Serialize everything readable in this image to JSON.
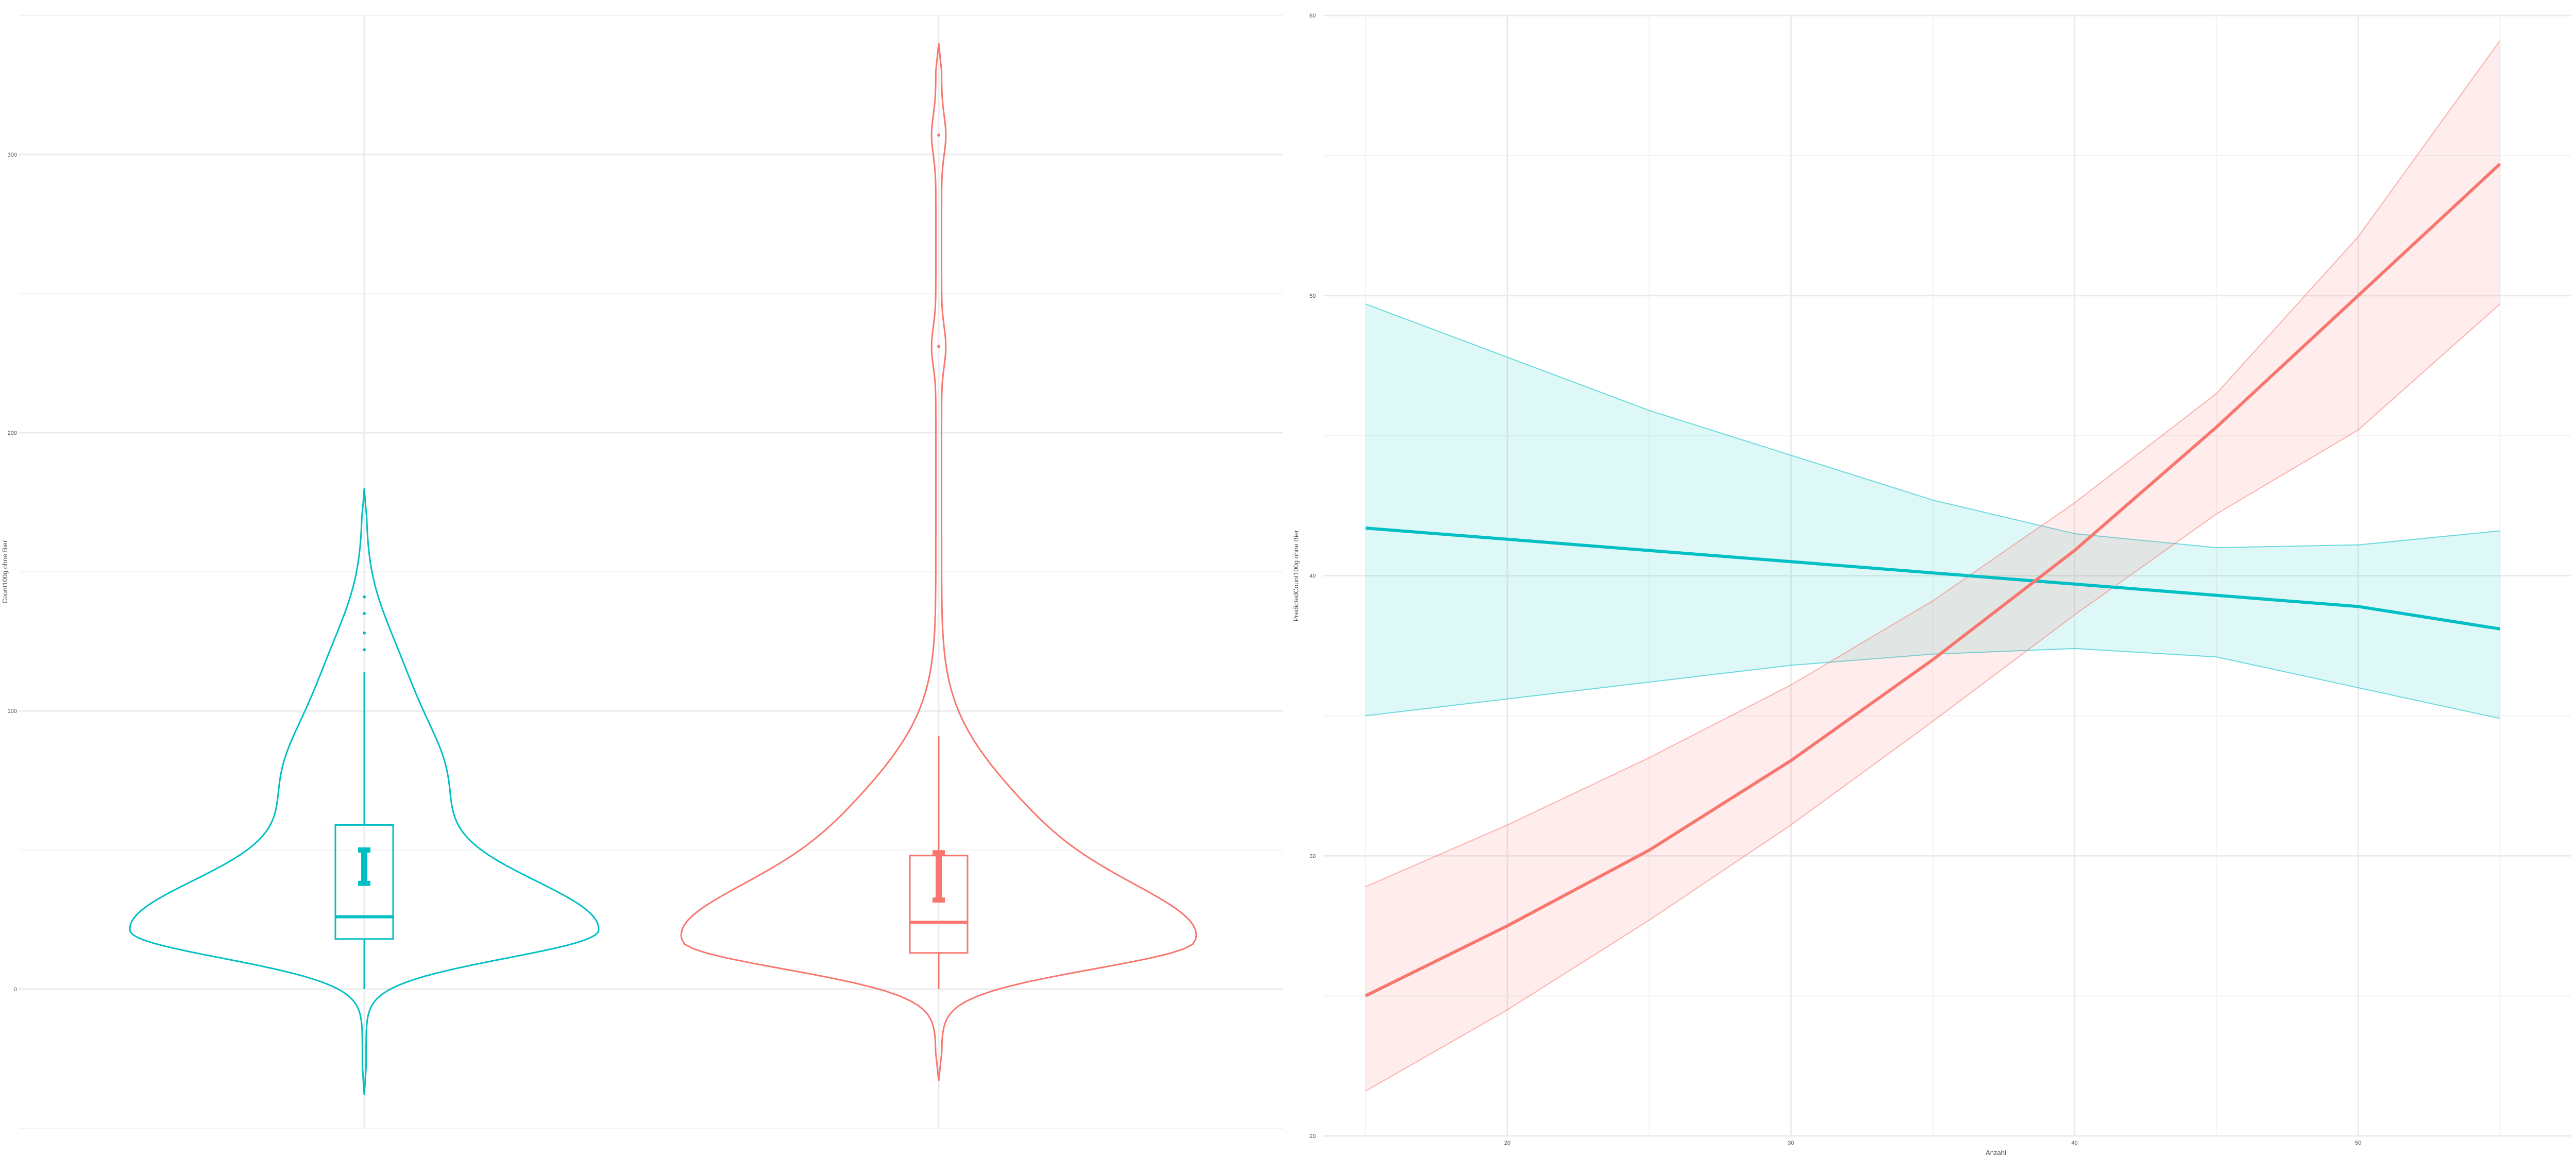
{
  "chart_data": [
    {
      "type": "violin",
      "ylabel": "Count100g ohne Bier",
      "yticks": [
        0,
        100,
        200,
        300
      ],
      "ylim": [
        -50,
        350
      ],
      "grid": true,
      "legend": "none",
      "groups": [
        {
          "color": "#00BFC4",
          "box": {
            "q1": 18,
            "median": 26,
            "q3": 59,
            "whisker_low": 0,
            "whisker_high": 114
          },
          "mean_ci": [
            38,
            50
          ],
          "outliers": [
            122,
            128,
            135,
            141
          ],
          "density_max_at": 21,
          "range": [
            -38,
            180
          ]
        },
        {
          "color": "#F8766D",
          "box": {
            "q1": 13,
            "median": 24,
            "q3": 48,
            "whisker_low": 0,
            "whisker_high": 91
          },
          "mean_ci": [
            32,
            49
          ],
          "outliers": [
            231,
            307
          ],
          "density_max_at": 17,
          "range": [
            -33,
            340
          ]
        }
      ]
    },
    {
      "type": "line",
      "xlabel": "Anzahl",
      "ylabel": "PredictedCount100g ohne Bier",
      "xticks": [
        20,
        30,
        40,
        50
      ],
      "yticks": [
        20,
        30,
        40,
        50,
        60
      ],
      "xlim": [
        13.5,
        57.5
      ],
      "ylim": [
        20,
        60
      ],
      "grid": true,
      "legend": "none",
      "series": [
        {
          "color": "#00BFC4",
          "x": [
            15,
            20,
            25,
            30,
            35,
            40,
            45,
            50,
            55
          ],
          "y": [
            41.7,
            41.3,
            40.9,
            40.5,
            40.1,
            39.7,
            39.3,
            38.9,
            38.1
          ],
          "lower": [
            35.0,
            35.6,
            36.2,
            36.8,
            37.2,
            37.4,
            37.1,
            36.0,
            34.9
          ],
          "upper": [
            49.7,
            47.8,
            45.9,
            44.3,
            42.7,
            41.5,
            41.0,
            41.1,
            41.6
          ]
        },
        {
          "color": "#F8766D",
          "x": [
            15,
            20,
            25,
            30,
            35,
            40,
            45,
            50,
            55
          ],
          "y": [
            25.0,
            27.5,
            30.2,
            33.4,
            37.0,
            40.9,
            45.3,
            50.0,
            54.7
          ],
          "lower": [
            21.6,
            24.5,
            27.7,
            31.1,
            34.8,
            38.6,
            42.2,
            45.2,
            49.7
          ],
          "upper": [
            28.9,
            31.1,
            33.5,
            36.1,
            39.1,
            42.6,
            46.5,
            52.1,
            59.1
          ]
        }
      ]
    }
  ]
}
